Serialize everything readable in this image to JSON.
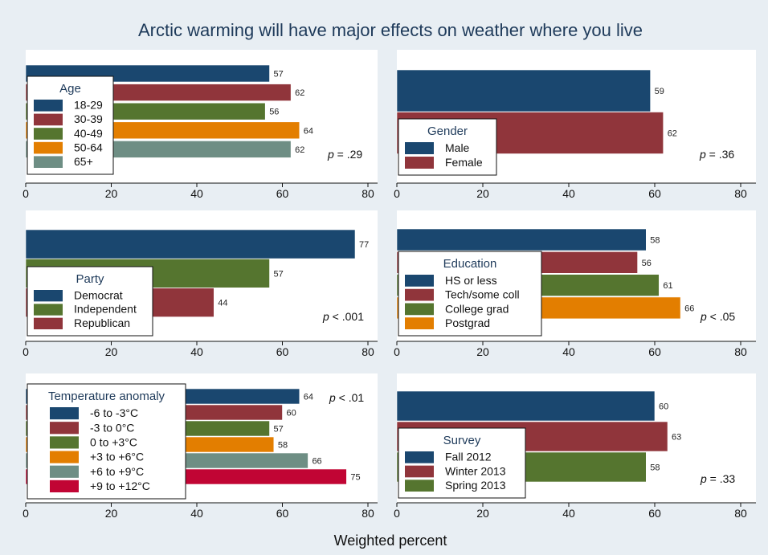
{
  "title": "Arctic warming will have major effects on weather where you live",
  "xlabel": "Weighted percent",
  "chart_data": [
    {
      "type": "bar",
      "orientation": "horizontal",
      "legend_title": "Age",
      "categories": [
        "18-29",
        "30-39",
        "40-49",
        "50-64",
        "65+"
      ],
      "values": [
        57,
        62,
        56,
        64,
        62
      ],
      "colors": [
        "#1a476f",
        "#90353b",
        "#55752f",
        "#e37e00",
        "#6e8e84"
      ],
      "p_value": "= .29",
      "xlim": [
        0,
        80
      ],
      "xticks": [
        0,
        20,
        40,
        60,
        80
      ]
    },
    {
      "type": "bar",
      "orientation": "horizontal",
      "legend_title": "Gender",
      "categories": [
        "Male",
        "Female"
      ],
      "values": [
        59,
        62
      ],
      "colors": [
        "#1a476f",
        "#90353b"
      ],
      "p_value": "= .36",
      "xlim": [
        0,
        80
      ],
      "xticks": [
        0,
        20,
        40,
        60,
        80
      ]
    },
    {
      "type": "bar",
      "orientation": "horizontal",
      "legend_title": "Party",
      "categories": [
        "Democrat",
        "Independent",
        "Republican"
      ],
      "values": [
        77,
        57,
        44
      ],
      "colors": [
        "#1a476f",
        "#55752f",
        "#90353b"
      ],
      "p_value": "< .001",
      "xlim": [
        0,
        80
      ],
      "xticks": [
        0,
        20,
        40,
        60,
        80
      ]
    },
    {
      "type": "bar",
      "orientation": "horizontal",
      "legend_title": "Education",
      "categories": [
        "HS or less",
        "Tech/some coll",
        "College grad",
        "Postgrad"
      ],
      "values": [
        58,
        56,
        61,
        66
      ],
      "colors": [
        "#1a476f",
        "#90353b",
        "#55752f",
        "#e37e00"
      ],
      "p_value": "< .05",
      "xlim": [
        0,
        80
      ],
      "xticks": [
        0,
        20,
        40,
        60,
        80
      ]
    },
    {
      "type": "bar",
      "orientation": "horizontal",
      "legend_title": "Temperature anomaly",
      "categories": [
        "-6 to -3°C",
        "-3 to 0°C",
        "0 to +3°C",
        "+3 to +6°C",
        "+6 to +9°C",
        "+9 to +12°C"
      ],
      "values": [
        64,
        60,
        57,
        58,
        66,
        75
      ],
      "colors": [
        "#1a476f",
        "#90353b",
        "#55752f",
        "#e37e00",
        "#6e8e84",
        "#c10534"
      ],
      "p_value": "< .01",
      "xlim": [
        0,
        80
      ],
      "xticks": [
        0,
        20,
        40,
        60,
        80
      ]
    },
    {
      "type": "bar",
      "orientation": "horizontal",
      "legend_title": "Survey",
      "categories": [
        "Fall 2012",
        "Winter 2013",
        "Spring 2013"
      ],
      "values": [
        60,
        63,
        58
      ],
      "colors": [
        "#1a476f",
        "#90353b",
        "#55752f"
      ],
      "p_value": "= .33",
      "xlim": [
        0,
        80
      ],
      "xticks": [
        0,
        20,
        40,
        60,
        80
      ]
    }
  ]
}
